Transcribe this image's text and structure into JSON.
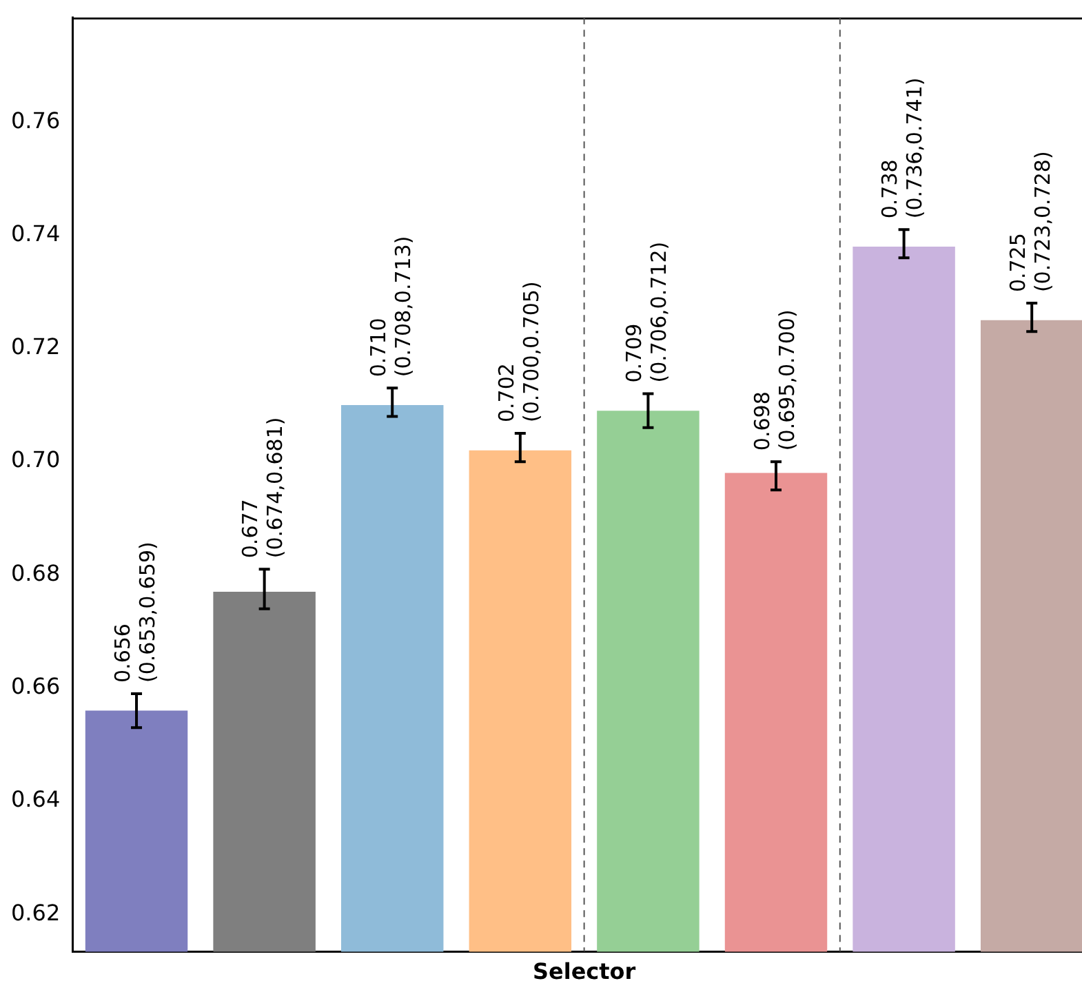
{
  "chart_data": {
    "type": "bar",
    "xlabel": "Selector",
    "categories": [
      null,
      null,
      null,
      null,
      null,
      null,
      null,
      null
    ],
    "values": [
      0.656,
      0.677,
      0.71,
      0.702,
      0.709,
      0.698,
      0.738,
      0.725
    ],
    "colors": [
      "#7f7fbf",
      "#7f7f7f",
      "#8fbbd9",
      "#ffbf86",
      "#95cf95",
      "#ea9393",
      "#c9b3de",
      "#c5aaa5"
    ],
    "errors": [
      [
        0.653,
        0.659
      ],
      [
        0.674,
        0.681
      ],
      [
        0.708,
        0.713
      ],
      [
        0.7,
        0.705
      ],
      [
        0.706,
        0.712
      ],
      [
        0.695,
        0.7
      ],
      [
        0.736,
        0.741
      ],
      [
        0.723,
        0.728
      ]
    ],
    "value_labels": [
      "0.656\n(0.653,0.659)",
      "0.677\n(0.674,0.681)",
      "0.710\n(0.708,0.713)",
      "0.702\n(0.700,0.705)",
      "0.709\n(0.706,0.712)",
      "0.698\n(0.695,0.700)",
      "0.738\n(0.736,0.741)",
      "0.725\n(0.723,0.728)"
    ],
    "ylim": [
      0.6134,
      0.7785
    ],
    "yticks": [
      0.62,
      0.64,
      0.66,
      0.68,
      {
        "value": 0.7,
        "label": "0.70"
      },
      0.72,
      0.74,
      0.76
    ],
    "grid": false,
    "legend": false
  }
}
